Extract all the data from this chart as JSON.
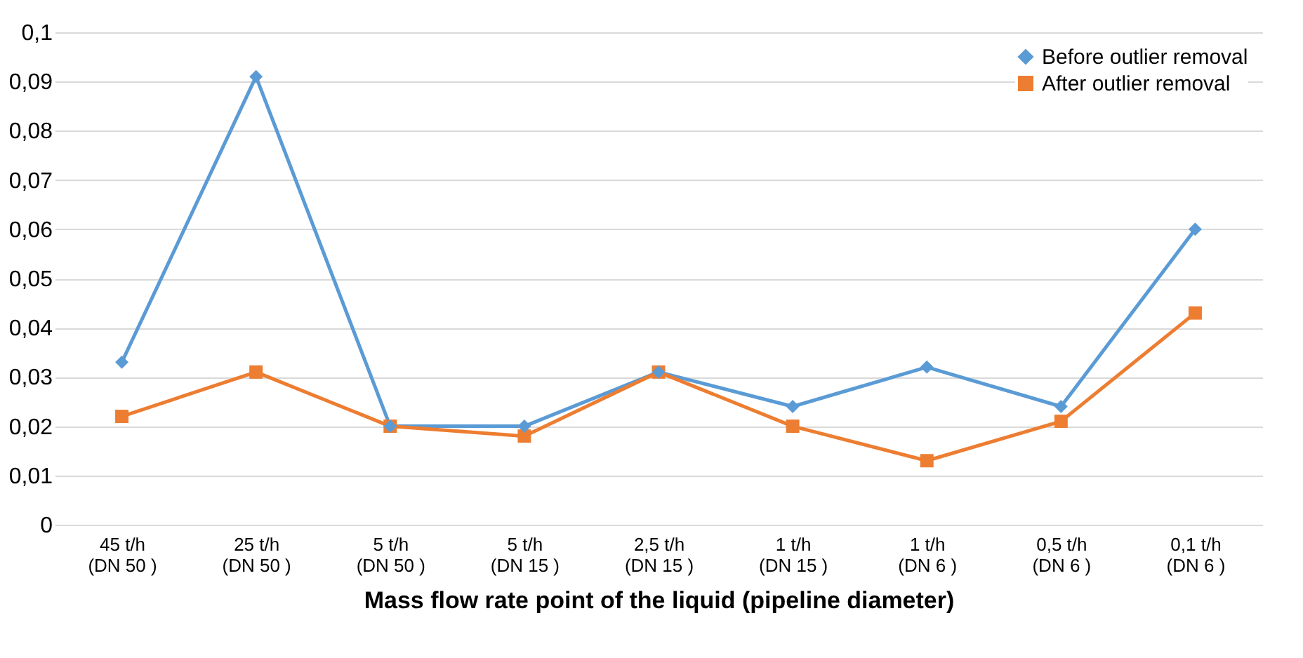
{
  "chart_data": {
    "type": "line",
    "xlabel": "Mass flow rate point of the liquid (pipeline diameter)",
    "categories": [
      "45 t/h\n(DN 50 )",
      "25 t/h\n(DN 50 )",
      "5 t/h\n(DN 50 )",
      "5 t/h\n(DN 15 )",
      "2,5 t/h\n(DN 15 )",
      "1 t/h\n(DN 15 )",
      "1 t/h\n(DN 6 )",
      "0,5 t/h\n(DN 6 )",
      "0,1 t/h\n(DN 6 )"
    ],
    "series": [
      {
        "name": "Before outlier removal",
        "color": "#5b9bd5",
        "marker": "diamond",
        "values": [
          0.033,
          0.091,
          0.02,
          0.02,
          0.031,
          0.024,
          0.032,
          0.024,
          0.06
        ]
      },
      {
        "name": "After outlier removal",
        "color": "#ed7d31",
        "marker": "square",
        "values": [
          0.022,
          0.031,
          0.02,
          0.018,
          0.031,
          0.02,
          0.013,
          0.021,
          0.043
        ]
      }
    ],
    "ylim": [
      0,
      0.1
    ],
    "yticks": [
      {
        "value": 0,
        "label": "0"
      },
      {
        "value": 0.01,
        "label": "0,01"
      },
      {
        "value": 0.02,
        "label": "0,02"
      },
      {
        "value": 0.03,
        "label": "0,03"
      },
      {
        "value": 0.04,
        "label": "0,04"
      },
      {
        "value": 0.05,
        "label": "0,05"
      },
      {
        "value": 0.06,
        "label": "0,06"
      },
      {
        "value": 0.07,
        "label": "0,07"
      },
      {
        "value": 0.08,
        "label": "0,08"
      },
      {
        "value": 0.09,
        "label": "0,09"
      },
      {
        "value": 0.1,
        "label": "0,1"
      }
    ],
    "grid": "y",
    "legend": "top right"
  }
}
